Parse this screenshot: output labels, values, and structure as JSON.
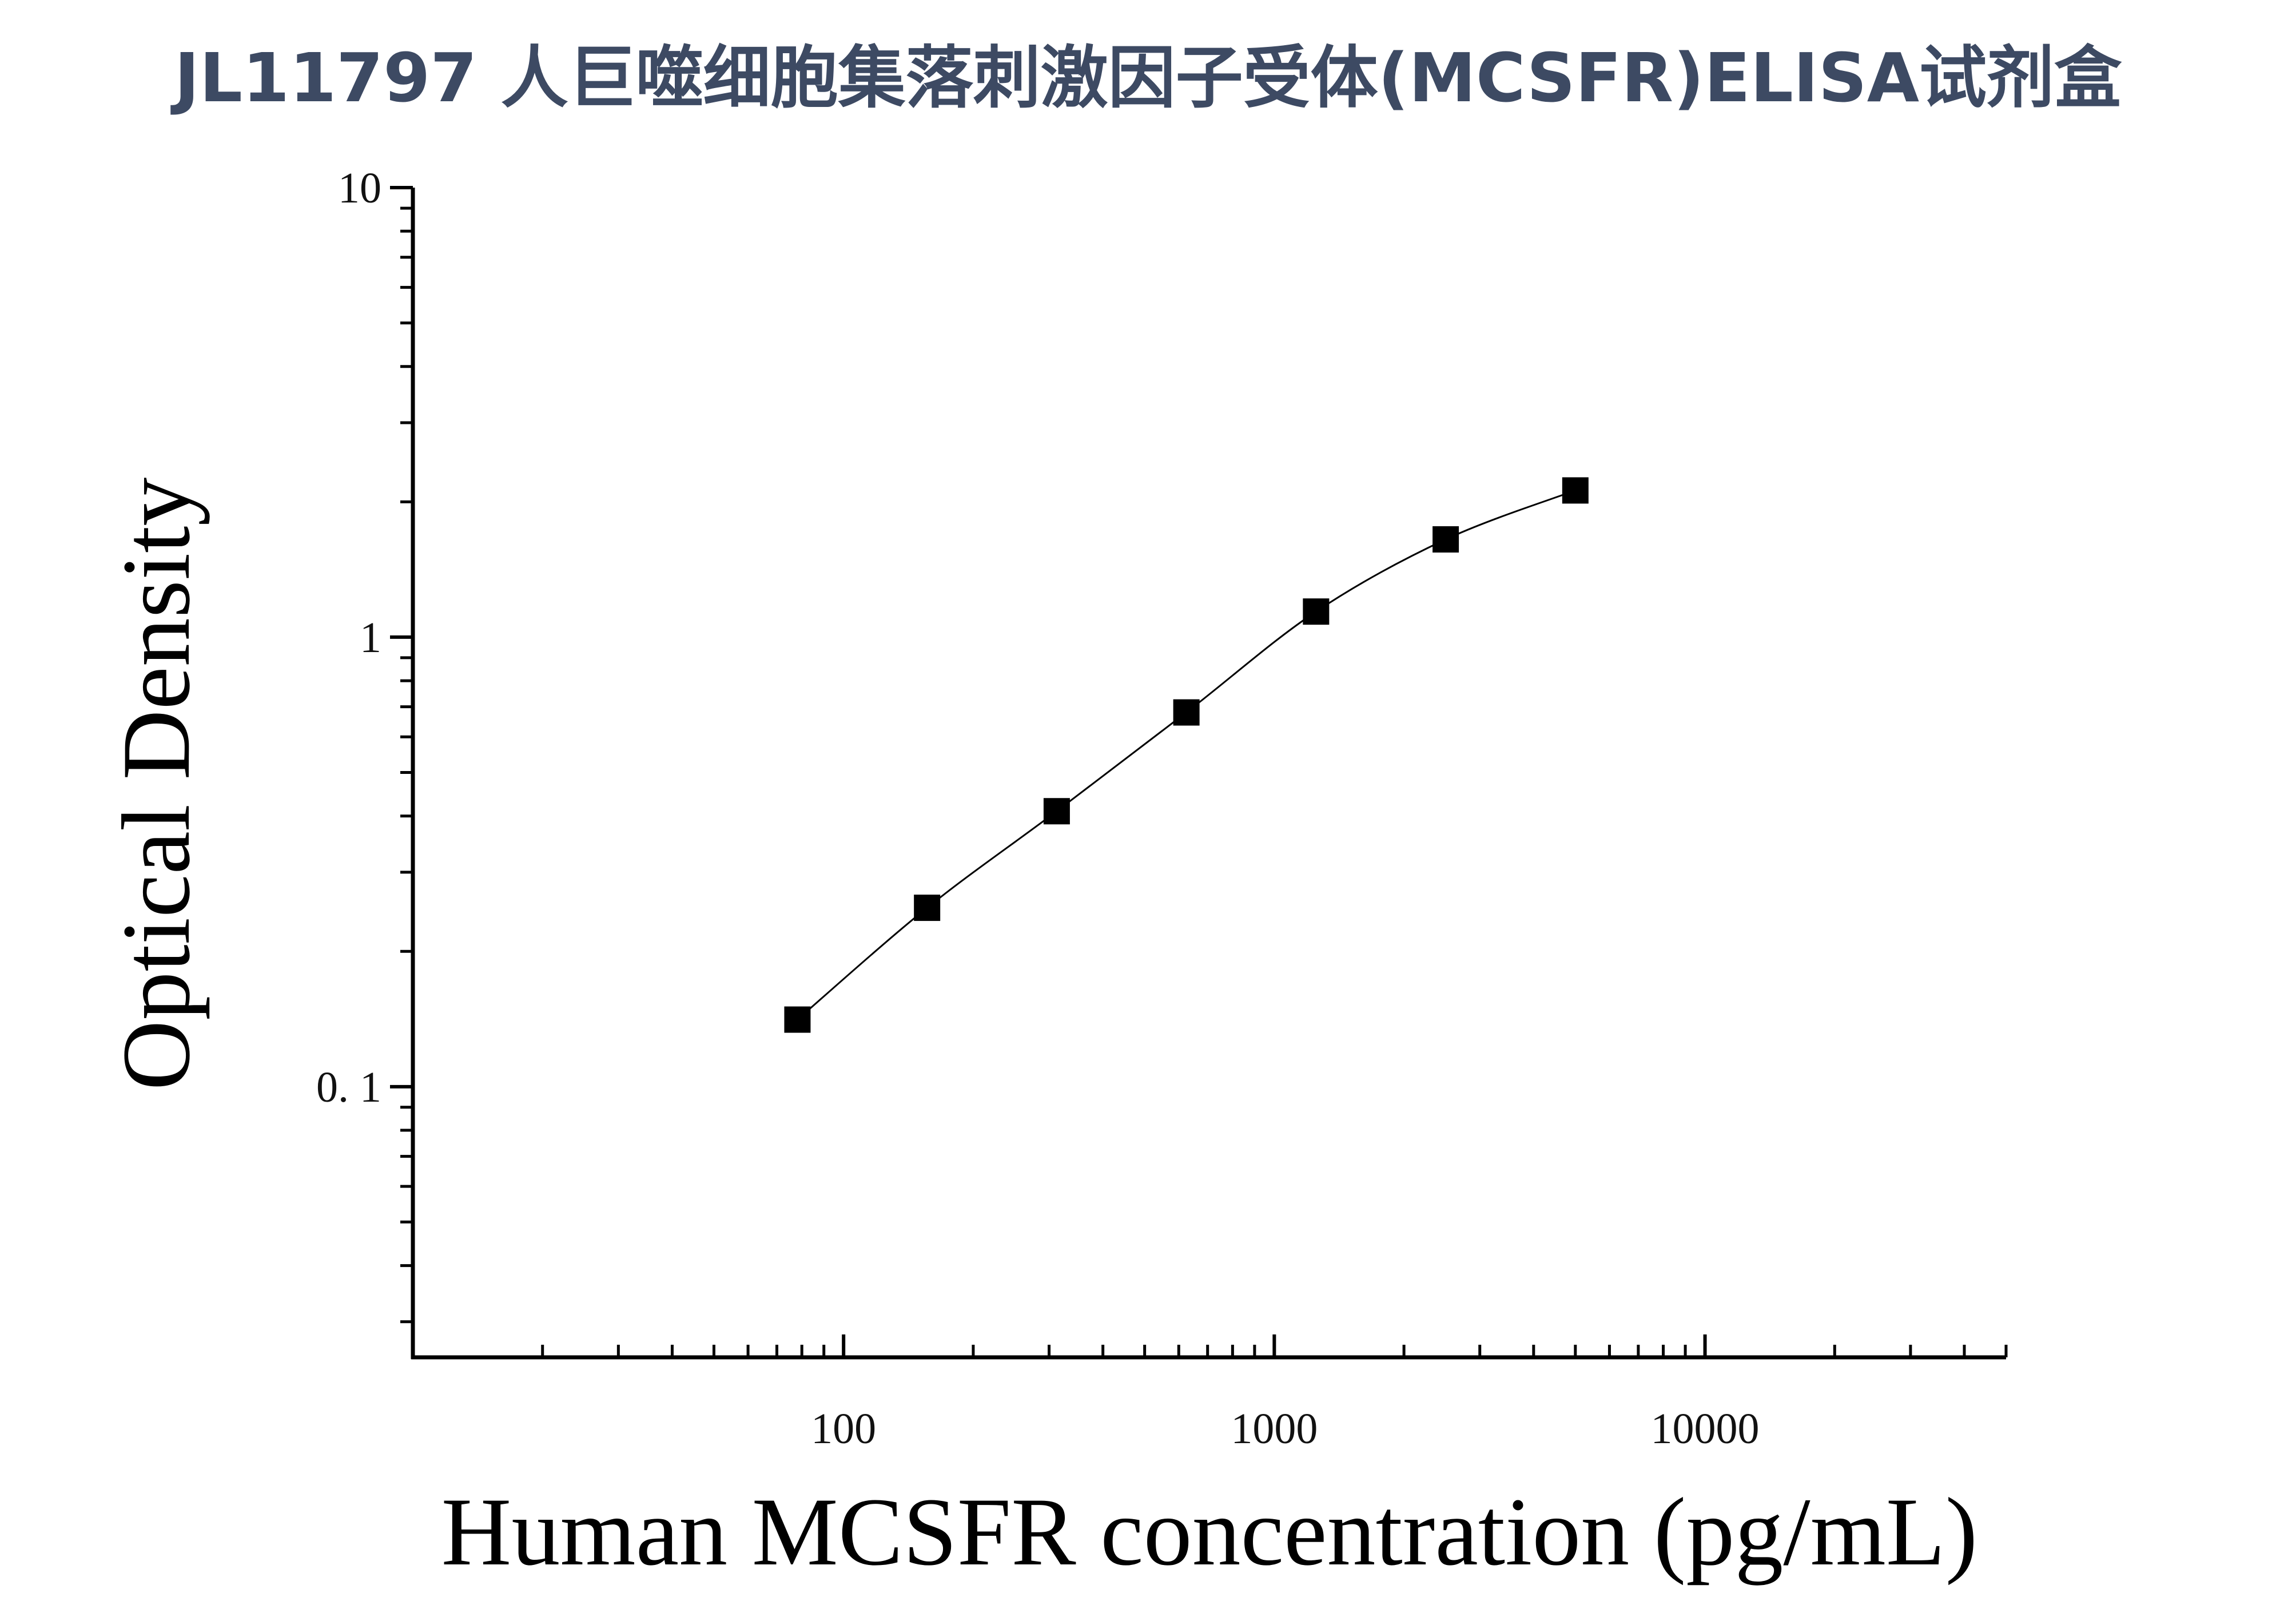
{
  "chart_data": {
    "type": "scatter",
    "title": "JL11797 人巨噬细胞集落刺激因子受体(MCSFR)ELISA试剂盒",
    "xlabel": "Human MCSFR concentration (pg/mL)",
    "ylabel": "Optical Density",
    "x_scale": "log",
    "y_scale": "log",
    "xlim": [
      10,
      50000
    ],
    "ylim": [
      0.025,
      10
    ],
    "x_ticks": [
      100,
      1000,
      10000
    ],
    "x_tick_labels": [
      "100",
      "1000",
      "10000"
    ],
    "y_ticks": [
      0.1,
      1,
      10
    ],
    "y_tick_labels": [
      "0. 1",
      "1",
      "10"
    ],
    "grid": false,
    "legend": "none",
    "marker": "square",
    "marker_color": "#000000",
    "line_color": "#000000",
    "series": [
      {
        "x": [
          78.125,
          156.25,
          312.5,
          625,
          1250,
          2500,
          5000
        ],
        "y": [
          0.141,
          0.25,
          0.41,
          0.68,
          1.14,
          1.65,
          2.12
        ],
        "fit_curve": true
      }
    ]
  }
}
